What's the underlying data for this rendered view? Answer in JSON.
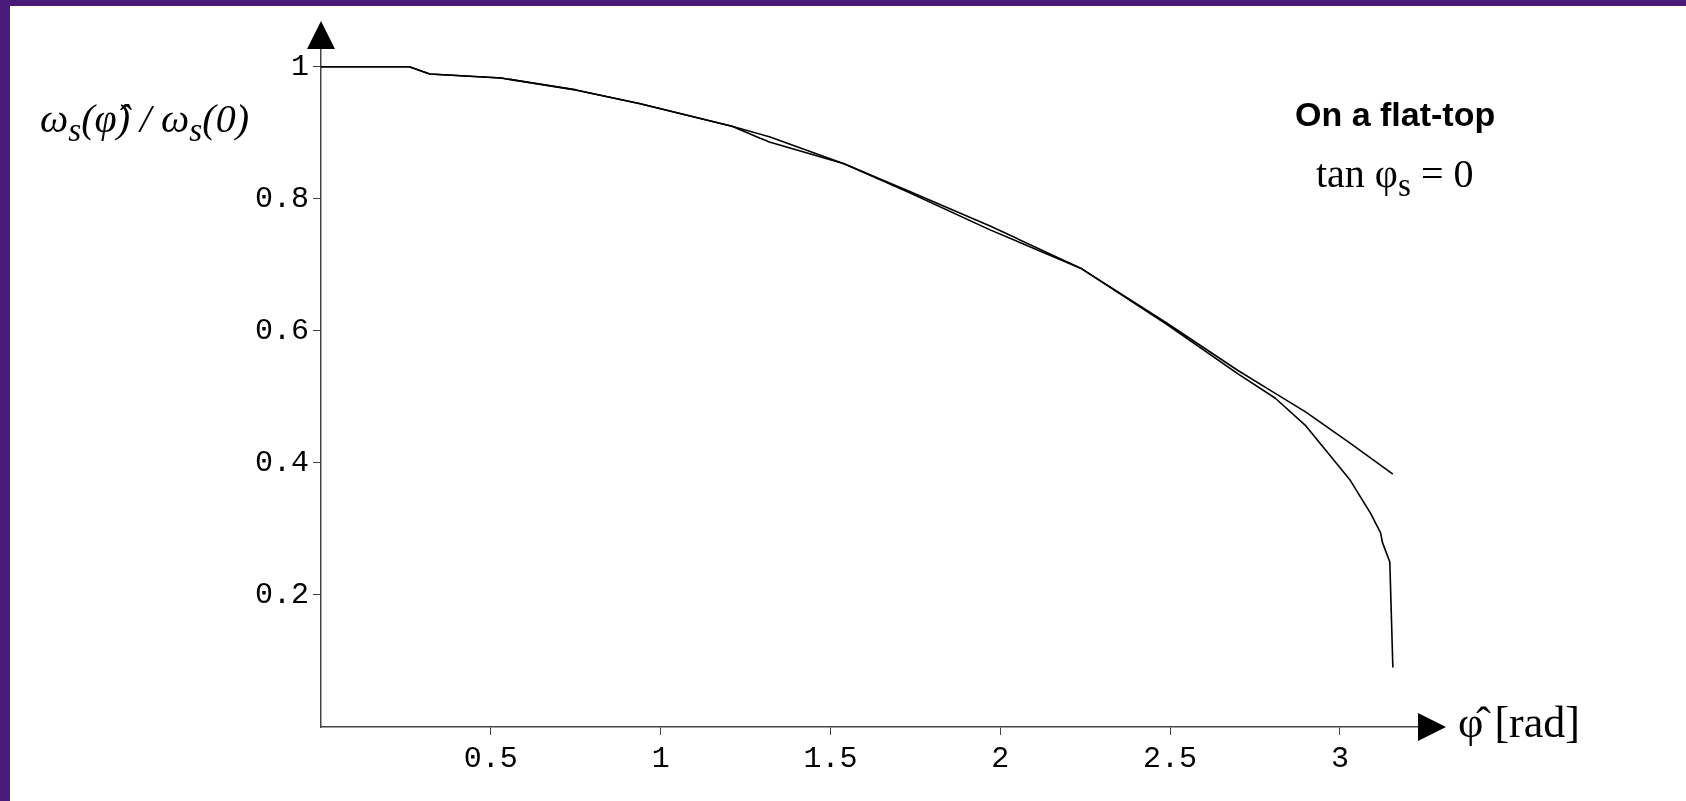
{
  "chart_data": {
    "type": "line",
    "xlabel": "φ̂ [rad]",
    "ylabel": "ω$_{s}$(φ̂) / ω$_{s}$(0)",
    "annotations": [
      "On a flat-top",
      "tan φ$_{s}$ = 0"
    ],
    "xlim": [
      0,
      3.23
    ],
    "ylim": [
      0,
      1.03
    ],
    "xticks": [
      0.5,
      1,
      1.5,
      2,
      2.5,
      3
    ],
    "yticks": [
      0.2,
      0.4,
      0.6,
      0.8,
      1
    ],
    "marker": "none",
    "line_style": "solid",
    "series": [
      {
        "color": "#000000",
        "x": [
          0,
          0.26,
          0.32,
          0.53,
          0.75,
          0.94,
          1.21,
          1.32,
          1.54,
          1.73,
          1.97,
          2.24,
          2.49,
          2.7,
          2.9,
          3.03,
          3.156
        ],
        "values": [
          1,
          1,
          0.989,
          0.983,
          0.965,
          0.944,
          0.91,
          0.894,
          0.853,
          0.812,
          0.759,
          0.694,
          0.612,
          0.54,
          0.477,
          0.43,
          0.383
        ]
      },
      {
        "color": "#000000",
        "x": [
          0,
          0.26,
          0.32,
          0.53,
          0.75,
          0.94,
          1.21,
          1.32,
          1.54,
          1.73,
          1.97,
          2.24,
          2.49,
          2.7,
          2.81,
          2.9,
          3.03,
          3.09,
          3.12,
          3.125,
          3.147,
          3.156
        ],
        "values": [
          1,
          1,
          0.989,
          0.983,
          0.965,
          0.944,
          0.91,
          0.886,
          0.853,
          0.81,
          0.753,
          0.694,
          0.61,
          0.535,
          0.498,
          0.456,
          0.374,
          0.324,
          0.294,
          0.28,
          0.25,
          0.09
        ]
      }
    ]
  }
}
